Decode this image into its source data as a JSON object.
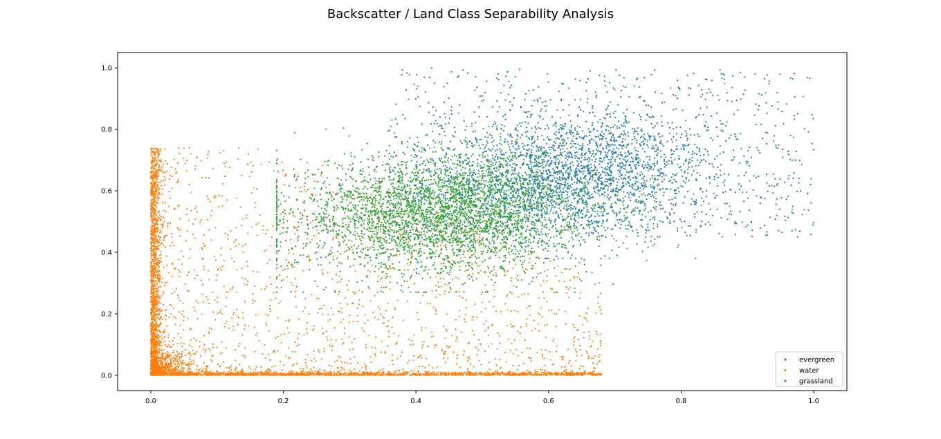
{
  "chart_data": {
    "type": "scatter",
    "title": "Backscatter / Land Class Separability Analysis",
    "xlabel": "",
    "ylabel": "",
    "xlim": [
      -0.05,
      1.05
    ],
    "ylim": [
      -0.05,
      1.05
    ],
    "xticks": [
      "0.0",
      "0.2",
      "0.4",
      "0.6",
      "0.8",
      "1.0"
    ],
    "yticks": [
      "0.0",
      "0.2",
      "0.4",
      "0.6",
      "0.8",
      "1.0"
    ],
    "grid": false,
    "legend_position": "lower-right",
    "series": [
      {
        "name": "evergreen",
        "color": "#1f77b4",
        "distribution": {
          "x_range": [
            0.36,
            1.0
          ],
          "x_center": 0.64,
          "y_center": 0.65,
          "y_range": [
            0.38,
            1.0
          ],
          "approx_points": 3000
        }
      },
      {
        "name": "water",
        "color": "#ff7f0e",
        "distribution": {
          "x_range": [
            0.0,
            0.68
          ],
          "y_range": [
            0.0,
            0.74
          ],
          "dense_near_x0": true,
          "dense_near_y0": true,
          "approx_points": 5000
        }
      },
      {
        "name": "grassland",
        "color": "#2ca02c",
        "distribution": {
          "x_range": [
            0.19,
            0.76
          ],
          "x_center": 0.45,
          "y_center": 0.53,
          "y_range": [
            0.27,
            0.81
          ],
          "approx_points": 4000
        }
      }
    ]
  }
}
